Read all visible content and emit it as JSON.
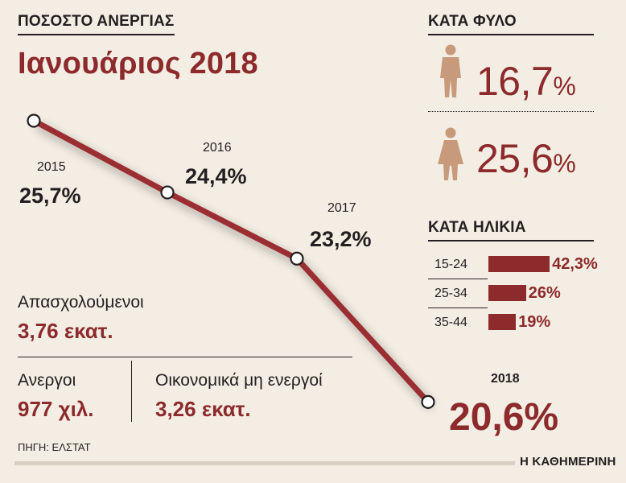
{
  "header": {
    "section_title": "ΠΟΣΟΣΤΟ ΑΝΕΡΓΙΑΣ",
    "subtitle": "Ιανουάριος 2018"
  },
  "chart_data": {
    "type": "line",
    "x": [
      "2015",
      "2016",
      "2017",
      "2018"
    ],
    "series": [
      {
        "values": [
          25.7,
          24.4,
          23.2,
          20.6
        ]
      }
    ],
    "data_labels": [
      "25,7%",
      "24,4%",
      "23,2%",
      "20,6%"
    ],
    "line_color": "#9a2e30"
  },
  "employment": {
    "employed_label": "Απασχολούμενοι",
    "employed_value": "3,76 εκατ.",
    "unemployed_label": "Ανεργοι",
    "unemployed_value": "977 χιλ.",
    "inactive_label": "Οικονομικά μη ενεργοί",
    "inactive_value": "3,26 εκατ."
  },
  "by_gender": {
    "title": "ΚΑΤΑ ΦΥΛΟ",
    "male_value": "16,7",
    "female_value": "25,6",
    "percent_sign": "%",
    "icon_color": "#c79a7b"
  },
  "by_age": {
    "title": "ΚΑΤΑ ΗΛΙΚΙΑ",
    "rows": [
      {
        "label": "15-24",
        "value": 42.3,
        "value_text": "42,3%"
      },
      {
        "label": "25-34",
        "value": 26,
        "value_text": "26%"
      },
      {
        "label": "35-44",
        "value": 19,
        "value_text": "19%"
      }
    ]
  },
  "footer": {
    "source": "ΠΗΓΗ: ΕΛΣΤΑΤ",
    "brand": "Η ΚΑΘΗΜΕΡΙΝΗ"
  },
  "colors": {
    "accent": "#8c2a2c",
    "background": "#f3ede3"
  }
}
